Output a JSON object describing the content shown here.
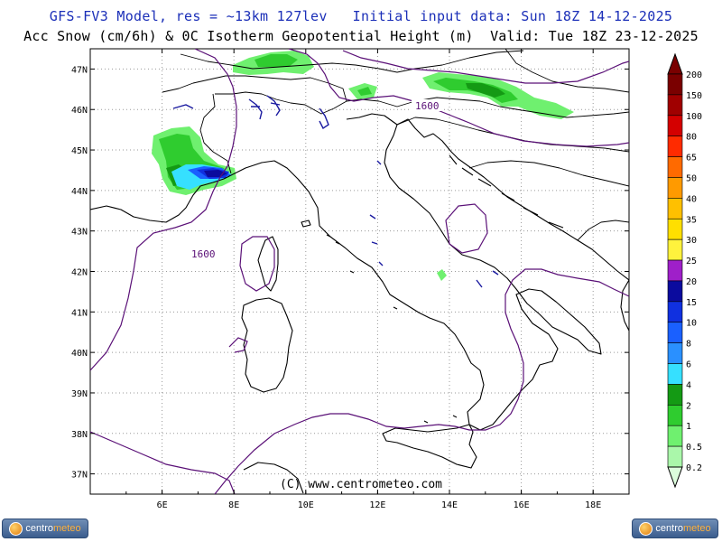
{
  "header": {
    "line1": "GFS-FV3 Model, res = ~13km 127lev   Initial input data: Sun 18Z 14-12-2025",
    "line2": "Acc Snow (cm/6h) & 0C Isotherm Geopotential Height (m)  Valid: Tue 18Z 23-12-2025"
  },
  "map": {
    "lon_range": [
      4,
      19
    ],
    "lat_range": [
      36.5,
      47.5
    ],
    "lat_labels": [
      "37N",
      "38N",
      "39N",
      "40N",
      "41N",
      "42N",
      "43N",
      "44N",
      "45N",
      "46N",
      "47N"
    ],
    "lon_labels": [
      "6E",
      "8E",
      "10E",
      "12E",
      "14E",
      "16E",
      "18E"
    ],
    "contour_labels": [
      "1600",
      "1600"
    ],
    "copyright": "(C) www.centrometeo.com",
    "colors": {
      "frame": "#000000",
      "coast": "#000000",
      "contour": "#5a1077",
      "lakes": "#1a1aa0",
      "grid": "#9a9a9a"
    }
  },
  "legend": {
    "levels": [
      "200",
      "150",
      "100",
      "80",
      "65",
      "50",
      "40",
      "35",
      "30",
      "25",
      "20",
      "15",
      "10",
      "8",
      "6",
      "4",
      "2",
      "1",
      "0.5",
      "0.2"
    ],
    "colors": [
      "#7a0000",
      "#a00000",
      "#d40000",
      "#ff2b00",
      "#ff6a00",
      "#ff9a00",
      "#ffc000",
      "#ffdf00",
      "#fff23d",
      "#9f1fc9",
      "#0b0b9e",
      "#1030e0",
      "#1a60ff",
      "#2a90ff",
      "#36e0ff",
      "#149a14",
      "#2fcc2f",
      "#6ff06f",
      "#aaf7aa",
      "#dcfcdc"
    ]
  },
  "logos": {
    "text_a": "centro",
    "text_b": "meteo"
  }
}
